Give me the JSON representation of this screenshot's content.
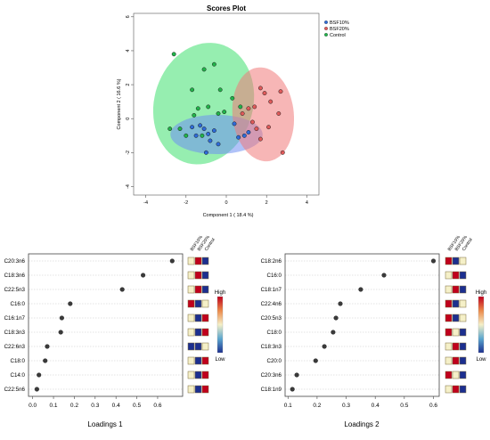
{
  "colors": {
    "bsf10": "#2e6bd8",
    "bsf20": "#e05a5a",
    "control": "#21b34a",
    "ellipse_bsf10": "#6f8ff2",
    "ellipse_bsf20": "#f07a7a",
    "ellipse_control": "#3fe06f",
    "heat_high": "#c0001c",
    "heat_mid": "#f5f0c8",
    "heat_low": "#1c2f8f"
  },
  "chart_data": [
    {
      "type": "scatter",
      "title": "Scores Plot",
      "xlabel": "Component 1 ( 18.4 %)",
      "ylabel": "Component 2 ( 16.6 %)",
      "xlim": [
        -4.6,
        4.6
      ],
      "ylim": [
        -4.5,
        6.2
      ],
      "xticks": [
        "-4",
        "-2",
        "0",
        "2",
        "4"
      ],
      "yticks": [
        "-4",
        "-2",
        "0",
        "2",
        "4",
        "6"
      ],
      "legend_position": "top-right",
      "series": [
        {
          "name": "BSF10%",
          "points": [
            [
              -1.7,
              -0.5
            ],
            [
              -1.5,
              -1.0
            ],
            [
              -1.3,
              -0.4
            ],
            [
              -1.1,
              -0.6
            ],
            [
              -0.9,
              -0.9
            ],
            [
              -0.8,
              -1.3
            ],
            [
              -0.6,
              -0.7
            ],
            [
              -1.0,
              -2.0
            ],
            [
              -0.4,
              -1.5
            ],
            [
              0.6,
              -1.1
            ],
            [
              0.9,
              -1.0
            ],
            [
              0.4,
              -0.3
            ],
            [
              1.1,
              -0.8
            ]
          ]
        },
        {
          "name": "BSF20%",
          "points": [
            [
              0.8,
              0.3
            ],
            [
              1.1,
              0.6
            ],
            [
              1.3,
              -0.2
            ],
            [
              1.4,
              0.7
            ],
            [
              1.7,
              1.8
            ],
            [
              1.9,
              1.5
            ],
            [
              2.2,
              1.0
            ],
            [
              2.6,
              0.3
            ],
            [
              2.7,
              1.6
            ],
            [
              2.1,
              -0.5
            ],
            [
              2.8,
              -2.0
            ],
            [
              1.7,
              -1.2
            ],
            [
              1.5,
              -0.6
            ]
          ]
        },
        {
          "name": "Control",
          "points": [
            [
              -2.6,
              3.8
            ],
            [
              -1.7,
              1.7
            ],
            [
              -1.1,
              2.9
            ],
            [
              -0.6,
              3.2
            ],
            [
              -0.3,
              1.7
            ],
            [
              0.3,
              1.2
            ],
            [
              -1.4,
              0.6
            ],
            [
              -0.9,
              0.7
            ],
            [
              -0.4,
              0.3
            ],
            [
              -2.3,
              -0.6
            ],
            [
              -2.0,
              -1.0
            ],
            [
              -2.8,
              -0.6
            ],
            [
              -1.2,
              -1.0
            ],
            [
              -0.1,
              0.4
            ],
            [
              0.7,
              0.7
            ],
            [
              -1.6,
              0.2
            ]
          ]
        }
      ]
    },
    {
      "type": "dot",
      "xlabel": "Loadings 1",
      "xlim": [
        -0.02,
        0.72
      ],
      "xticks": [
        "0.0",
        "0.1",
        "0.2",
        "0.3",
        "0.4",
        "0.5",
        "0.6"
      ],
      "categories": [
        "C20:3n6",
        "C18:3n6",
        "C22:5n3",
        "C16:0",
        "C16:1n7",
        "C18:3n3",
        "C22:6n3",
        "C18:0",
        "C14:0",
        "C22:5n6"
      ],
      "values": [
        0.67,
        0.53,
        0.43,
        0.18,
        0.14,
        0.135,
        0.07,
        0.06,
        0.03,
        0.02
      ],
      "heat_columns": [
        "BSF10%",
        "BSF20%",
        "Control"
      ],
      "heat_rows": [
        [
          "M",
          "H",
          "L"
        ],
        [
          "M",
          "H",
          "L"
        ],
        [
          "M",
          "H",
          "L"
        ],
        [
          "H",
          "L",
          "M"
        ],
        [
          "M",
          "L",
          "H"
        ],
        [
          "M",
          "L",
          "H"
        ],
        [
          "L",
          "L",
          "M"
        ],
        [
          "M",
          "L",
          "H"
        ],
        [
          "M",
          "L",
          "H"
        ],
        [
          "M",
          "L",
          "H"
        ]
      ],
      "color_key": {
        "high": "High",
        "low": "Low"
      }
    },
    {
      "type": "dot",
      "xlabel": "Loadings 2",
      "xlim": [
        0.09,
        0.62
      ],
      "xticks": [
        "0.1",
        "0.2",
        "0.3",
        "0.4",
        "0.5",
        "0.6"
      ],
      "categories": [
        "C18:2n6",
        "C16:0",
        "C18:1n7",
        "C22:4n6",
        "C20:5n3",
        "C18:0",
        "C18:3n3",
        "C20:0",
        "C20:3n6",
        "C18:1n9"
      ],
      "values": [
        0.6,
        0.43,
        0.35,
        0.28,
        0.265,
        0.255,
        0.225,
        0.195,
        0.13,
        0.115
      ],
      "heat_columns": [
        "BSF10%",
        "BSF20%",
        "Control"
      ],
      "heat_rows": [
        [
          "H",
          "L",
          "M"
        ],
        [
          "M",
          "H",
          "L"
        ],
        [
          "M",
          "H",
          "L"
        ],
        [
          "H",
          "L",
          "M"
        ],
        [
          "H",
          "L",
          "M"
        ],
        [
          "H",
          "M",
          "L"
        ],
        [
          "M",
          "H",
          "L"
        ],
        [
          "M",
          "H",
          "L"
        ],
        [
          "H",
          "M",
          "L"
        ],
        [
          "M",
          "H",
          "L"
        ]
      ],
      "color_key": {
        "high": "High",
        "low": "Low"
      }
    }
  ]
}
